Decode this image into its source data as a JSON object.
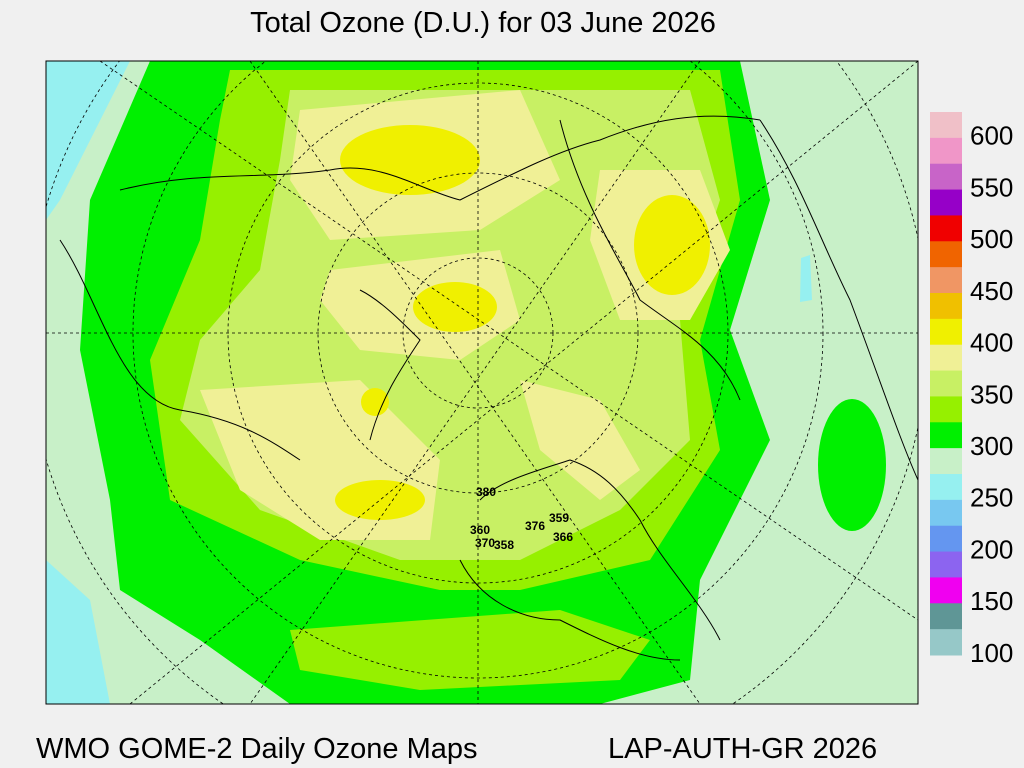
{
  "header": {
    "title": "Total Ozone (D.U.) for 03 June 2026"
  },
  "legend": {
    "ticks": [
      600,
      550,
      500,
      450,
      400,
      350,
      300,
      250,
      200,
      150,
      100
    ],
    "colors": [
      "#f0c0c8",
      "#f096c8",
      "#c864c8",
      "#9600c8",
      "#f00000",
      "#f06400",
      "#f09664",
      "#f0c000",
      "#f0f000",
      "#f0f096",
      "#c8f064",
      "#96f000",
      "#00f000",
      "#c8f0c8",
      "#96f0f0",
      "#78c8f0",
      "#6496f0",
      "#8c64f0",
      "#f000f0",
      "#5f9696",
      "#96c8c8"
    ]
  },
  "stations": [
    380,
    360,
    370,
    358,
    376,
    359,
    366
  ],
  "footer": {
    "left": "WMO GOME-2 Daily Ozone Maps",
    "right": "LAP-AUTH-GR 2026"
  }
}
